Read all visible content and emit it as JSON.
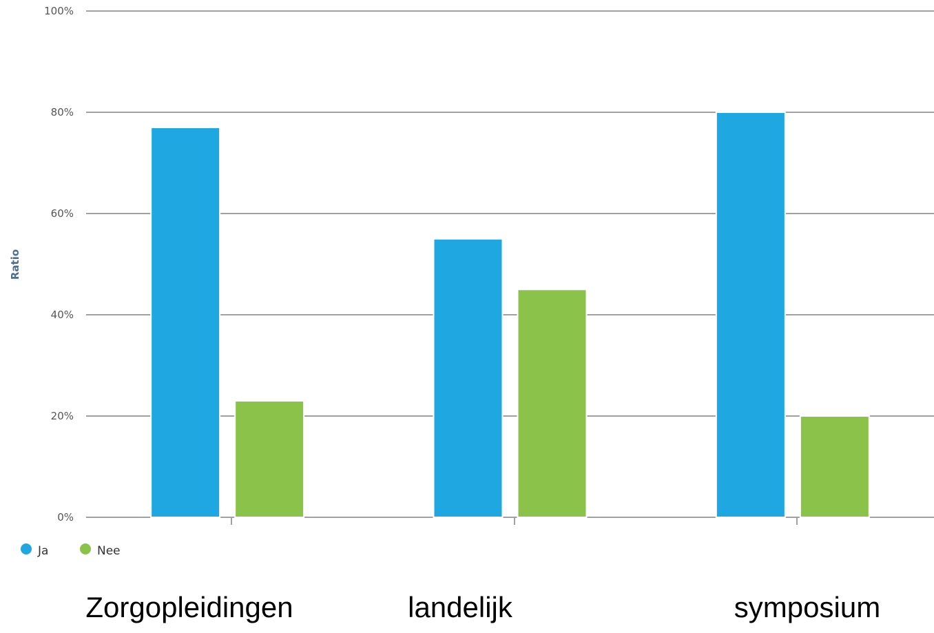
{
  "chart_data": {
    "type": "bar",
    "categories": [
      "Zorgopleidingen",
      "landelijk",
      "symposium"
    ],
    "series": [
      {
        "name": "Ja",
        "values": [
          77,
          55,
          80
        ],
        "color": "#1ea7e1"
      },
      {
        "name": "Nee",
        "values": [
          23,
          45,
          20
        ],
        "color": "#8bc34a"
      }
    ],
    "ylabel": "Ratio",
    "xlabel": "",
    "ylim": [
      0,
      100
    ],
    "yticks": [
      "0%",
      "20%",
      "40%",
      "60%",
      "80%",
      "100%"
    ],
    "ytick_values": [
      0,
      20,
      40,
      60,
      80,
      100
    ],
    "grid": true,
    "legend": {
      "position": "bottom-left"
    },
    "gridline_color": "#a0a0a0"
  }
}
